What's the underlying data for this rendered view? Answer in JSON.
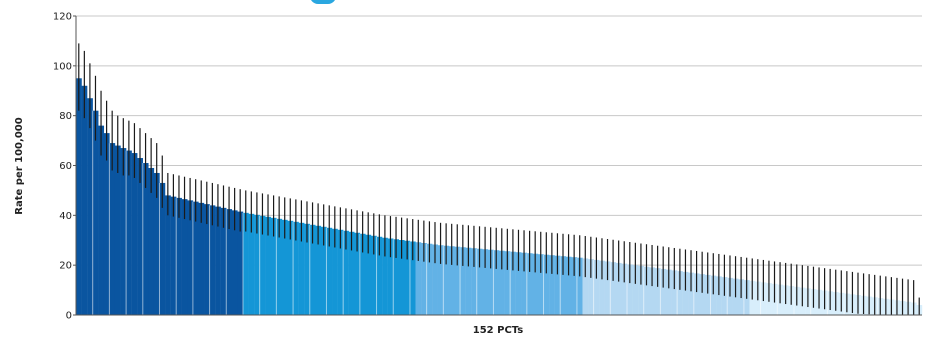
{
  "chart_data": {
    "type": "bar",
    "title": "",
    "xlabel": "152 PCTs",
    "ylabel": "Rate per 100,000",
    "ylim": [
      0,
      120
    ],
    "yticks": [
      0,
      20,
      40,
      60,
      80,
      100,
      120
    ],
    "grid": true,
    "bars_sorted": "descending",
    "error_bars": "95% interval shown as vertical black lines",
    "band_colors": [
      "#0a55a0",
      "#1496d6",
      "#62b2e6",
      "#b4d8f2",
      "#d8eefb"
    ],
    "band_sizes": [
      30,
      31,
      30,
      30,
      31
    ],
    "values": [
      95.0,
      92.0,
      87.0,
      82.0,
      76.0,
      73.0,
      69.0,
      68.0,
      67.0,
      66.0,
      65.0,
      63.0,
      61.0,
      59.0,
      57.0,
      53.0,
      48.0,
      47.5,
      47.0,
      46.5,
      46.0,
      45.5,
      45.0,
      44.5,
      44.0,
      43.5,
      43.0,
      42.5,
      42.0,
      41.5,
      41.0,
      40.6,
      40.2,
      39.8,
      39.4,
      39.0,
      38.6,
      38.2,
      37.8,
      37.4,
      37.0,
      36.6,
      36.2,
      35.8,
      35.4,
      35.0,
      34.6,
      34.2,
      33.8,
      33.4,
      33.0,
      32.6,
      32.2,
      31.8,
      31.4,
      31.0,
      30.7,
      30.4,
      30.1,
      29.8,
      29.5,
      29.2,
      28.9,
      28.6,
      28.3,
      28.0,
      27.8,
      27.6,
      27.4,
      27.2,
      27.0,
      26.8,
      26.6,
      26.4,
      26.2,
      26.0,
      25.8,
      25.6,
      25.4,
      25.2,
      25.0,
      24.8,
      24.6,
      24.4,
      24.2,
      24.0,
      23.8,
      23.6,
      23.4,
      23.2,
      23.0,
      22.7,
      22.4,
      22.1,
      21.8,
      21.5,
      21.2,
      20.9,
      20.6,
      20.3,
      20.0,
      19.7,
      19.4,
      19.1,
      18.8,
      18.5,
      18.2,
      17.9,
      17.6,
      17.3,
      17.0,
      16.7,
      16.4,
      16.1,
      15.8,
      15.5,
      15.2,
      14.9,
      14.6,
      14.3,
      14.0,
      13.7,
      13.4,
      13.1,
      12.8,
      12.5,
      12.2,
      11.9,
      11.6,
      11.3,
      11.0,
      10.7,
      10.4,
      10.1,
      9.8,
      9.5,
      9.2,
      8.9,
      8.6,
      8.3,
      8.0,
      7.7,
      7.4,
      7.1,
      6.8,
      6.5,
      6.2,
      5.9,
      5.6,
      5.3,
      5.0,
      4.0
    ],
    "error_low": [
      82.0,
      79.0,
      75.0,
      70.0,
      64.0,
      62.0,
      58.0,
      57.0,
      56.0,
      56.0,
      55.0,
      53.0,
      51.0,
      49.0,
      47.0,
      43.0,
      40.0,
      39.5,
      39.0,
      38.5,
      38.0,
      37.5,
      37.0,
      36.5,
      36.0,
      35.5,
      35.0,
      34.5,
      34.0,
      33.5,
      33.5,
      33.1,
      32.7,
      32.3,
      31.9,
      31.5,
      31.1,
      30.7,
      30.3,
      29.9,
      29.5,
      29.1,
      28.7,
      28.3,
      27.9,
      27.5,
      27.1,
      26.7,
      26.3,
      25.9,
      25.5,
      25.1,
      24.7,
      24.3,
      23.9,
      23.5,
      23.2,
      22.9,
      22.6,
      22.3,
      22.0,
      21.7,
      21.4,
      21.1,
      20.8,
      20.5,
      20.3,
      20.1,
      19.9,
      19.7,
      19.5,
      19.3,
      19.1,
      18.9,
      18.7,
      18.5,
      18.3,
      18.1,
      17.9,
      17.7,
      17.5,
      17.3,
      17.1,
      16.9,
      16.7,
      16.5,
      16.3,
      16.1,
      15.9,
      15.7,
      15.5,
      15.2,
      14.9,
      14.6,
      14.3,
      14.0,
      13.7,
      13.4,
      13.1,
      12.8,
      12.5,
      12.2,
      11.9,
      11.6,
      11.3,
      11.0,
      10.7,
      10.4,
      10.1,
      9.8,
      9.5,
      9.2,
      8.9,
      8.6,
      8.3,
      8.0,
      7.7,
      7.4,
      7.1,
      6.8,
      6.5,
      6.2,
      5.9,
      5.6,
      5.3,
      5.0,
      4.7,
      4.4,
      4.1,
      3.8,
      3.5,
      3.2,
      2.9,
      2.6,
      2.3,
      2.0,
      1.7,
      1.4,
      1.1,
      0.8,
      0.5,
      0.4,
      0.3,
      0.2,
      0.1,
      0.0,
      0.0,
      0.0,
      0.0,
      0.0,
      0.0,
      0.0
    ],
    "error_high": [
      109.0,
      106.0,
      101.0,
      96.0,
      90.0,
      86.0,
      82.0,
      80.0,
      79.0,
      78.0,
      77.0,
      75.0,
      73.0,
      71.0,
      69.0,
      64.0,
      57.0,
      56.5,
      56.0,
      55.5,
      55.0,
      54.5,
      54.0,
      53.5,
      53.0,
      52.5,
      52.0,
      51.5,
      51.0,
      50.5,
      50.0,
      49.6,
      49.2,
      48.8,
      48.4,
      48.0,
      47.6,
      47.2,
      46.8,
      46.4,
      46.0,
      45.6,
      45.2,
      44.8,
      44.4,
      44.0,
      43.6,
      43.2,
      42.8,
      42.4,
      42.0,
      41.6,
      41.2,
      40.8,
      40.4,
      40.0,
      39.7,
      39.4,
      39.1,
      38.8,
      38.5,
      38.2,
      37.9,
      37.6,
      37.3,
      37.0,
      36.8,
      36.6,
      36.4,
      36.2,
      36.0,
      35.8,
      35.6,
      35.4,
      35.2,
      35.0,
      34.8,
      34.6,
      34.4,
      34.2,
      34.0,
      33.8,
      33.6,
      33.4,
      33.2,
      33.0,
      32.8,
      32.6,
      32.4,
      32.2,
      32.0,
      31.7,
      31.4,
      31.1,
      30.8,
      30.5,
      30.2,
      29.9,
      29.6,
      29.3,
      29.0,
      28.7,
      28.4,
      28.1,
      27.8,
      27.5,
      27.2,
      26.9,
      26.6,
      26.3,
      26.0,
      25.7,
      25.4,
      25.1,
      24.8,
      24.5,
      24.2,
      23.9,
      23.6,
      23.3,
      23.0,
      22.7,
      22.4,
      22.1,
      21.8,
      21.5,
      21.2,
      20.9,
      20.6,
      20.3,
      20.0,
      19.7,
      19.4,
      19.1,
      18.8,
      18.5,
      18.2,
      17.9,
      17.6,
      17.3,
      17.0,
      16.7,
      16.4,
      16.1,
      15.8,
      15.5,
      15.2,
      14.9,
      14.6,
      14.3,
      14.0,
      7.0
    ]
  }
}
